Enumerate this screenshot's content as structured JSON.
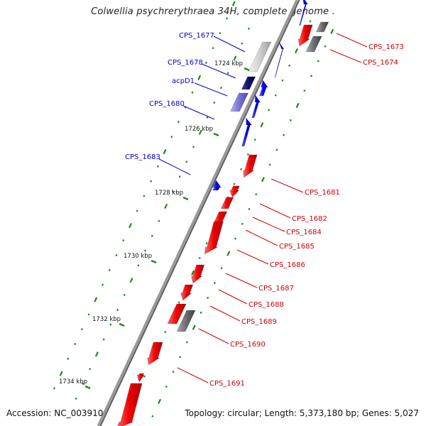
{
  "title": "Colwellia psychrerythraea 34H, complete genome .",
  "footer": {
    "accession": "Accession: NC_003910",
    "summary": "Topology: circular; Length: 5,373,180 bp; Genes: 5,027"
  },
  "scale_labels": [
    "1724 kbp",
    "1726 kbp",
    "1728 kbp",
    "1730 kbp",
    "1732 kbp",
    "1734 kbp"
  ],
  "genes_forward": [
    {
      "name": "CPS_1677"
    },
    {
      "name": "CPS_1678"
    },
    {
      "name": "acpD1"
    },
    {
      "name": "CPS_1680"
    },
    {
      "name": "CPS_1683"
    }
  ],
  "genes_reverse": [
    {
      "name": "CPS_1673"
    },
    {
      "name": "CPS_1674"
    },
    {
      "name": "CPS_1681"
    },
    {
      "name": "CPS_1682"
    },
    {
      "name": "CPS_1684"
    },
    {
      "name": "CPS_1685"
    },
    {
      "name": "CPS_1686"
    },
    {
      "name": "CPS_1687"
    },
    {
      "name": "CPS_1688"
    },
    {
      "name": "CPS_1689"
    },
    {
      "name": "CPS_1690"
    },
    {
      "name": "CPS_1691"
    }
  ],
  "colors": {
    "forward_label": "#0000cc",
    "reverse_label": "#cc0000",
    "forward_gene": "#0000ee",
    "reverse_gene": "#ee0000",
    "other_gene": "#6e6e6e",
    "backbone": "#9a9a9a",
    "gc_ticks": "#1a8a1a"
  }
}
